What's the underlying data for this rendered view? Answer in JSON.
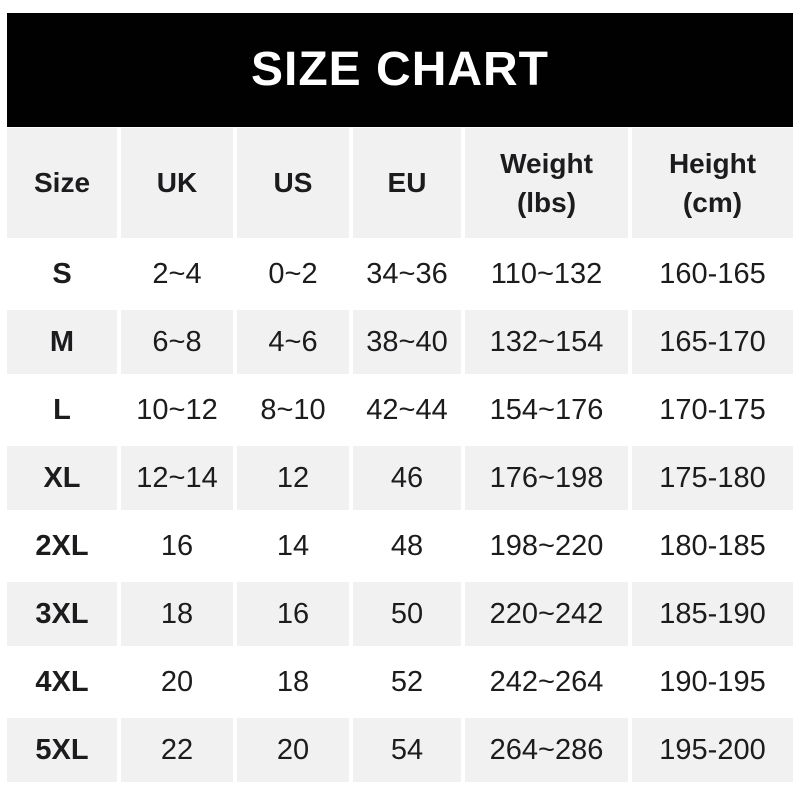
{
  "banner": {
    "title": "SIZE CHART"
  },
  "colors": {
    "banner_bg": "#010101",
    "banner_text": "#ffffff",
    "row_gray": "#f1f1f2",
    "row_white": "#ffffff",
    "text": "#1c1c1e"
  },
  "chart_data": {
    "type": "table",
    "title": "SIZE CHART",
    "columns": [
      "Size",
      "UK",
      "US",
      "EU",
      "Weight\n(lbs)",
      "Height\n(cm)"
    ],
    "rows": [
      [
        "S",
        "2~4",
        "0~2",
        "34~36",
        "110~132",
        "160-165"
      ],
      [
        "M",
        "6~8",
        "4~6",
        "38~40",
        "132~154",
        "165-170"
      ],
      [
        "L",
        "10~12",
        "8~10",
        "42~44",
        "154~176",
        "170-175"
      ],
      [
        "XL",
        "12~14",
        "12",
        "46",
        "176~198",
        "175-180"
      ],
      [
        "2XL",
        "16",
        "14",
        "48",
        "198~220",
        "180-185"
      ],
      [
        "3XL",
        "18",
        "16",
        "50",
        "220~242",
        "185-190"
      ],
      [
        "4XL",
        "20",
        "18",
        "52",
        "242~264",
        "190-195"
      ],
      [
        "5XL",
        "22",
        "20",
        "54",
        "264~286",
        "195-200"
      ]
    ],
    "layout": {
      "alternating_row_colors": true,
      "gray_rows": [
        "header",
        "M",
        "XL",
        "3XL",
        "5XL"
      ],
      "white_rows": [
        "S",
        "L",
        "2XL",
        "4XL"
      ]
    }
  }
}
